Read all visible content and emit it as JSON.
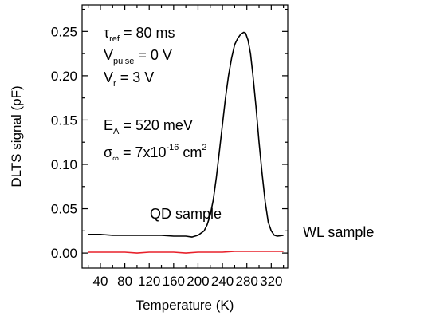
{
  "chart_data": {
    "type": "line",
    "xlabel": "Temperature (K)",
    "ylabel": "DLTS signal (pF)",
    "xlim": [
      10,
      347
    ],
    "ylim": [
      -0.017,
      0.28
    ],
    "xticks": [
      40,
      80,
      120,
      160,
      200,
      240,
      280,
      320
    ],
    "yticks": [
      0.0,
      0.05,
      0.1,
      0.15,
      0.2,
      0.25
    ],
    "xtick_labels": [
      "40",
      "80",
      "120",
      "160",
      "200",
      "240",
      "280",
      "320"
    ],
    "ytick_labels": [
      "0.00",
      "0.05",
      "0.10",
      "0.15",
      "0.20",
      "0.25"
    ],
    "grid": false,
    "legend": "none",
    "annotations": {
      "tau_ref": {
        "symbol": "τ",
        "sub": "ref",
        "text": " = 80 ms"
      },
      "v_pulse": {
        "symbol": "V",
        "sub": "pulse",
        "text": " = 0 V"
      },
      "v_r": {
        "symbol": "V",
        "sub": "r",
        "text": " = 3 V"
      },
      "e_a": {
        "symbol": "E",
        "sub": "A",
        "text": " = 520 meV"
      },
      "sigma": {
        "symbol": "σ",
        "sub": "∞",
        "text": " = 7x10",
        "sup": "-16",
        "text2": " cm",
        "sup2": "2"
      }
    },
    "series": [
      {
        "name": "QD sample",
        "color": "#000000",
        "x": [
          20,
          40,
          60,
          80,
          100,
          120,
          140,
          160,
          180,
          190,
          200,
          210,
          215,
          220,
          225,
          230,
          235,
          240,
          245,
          250,
          255,
          260,
          265,
          270,
          275,
          278,
          282,
          286,
          290,
          295,
          300,
          305,
          310,
          315,
          320,
          325,
          330,
          340
        ],
        "y": [
          0.021,
          0.021,
          0.02,
          0.02,
          0.02,
          0.02,
          0.02,
          0.019,
          0.019,
          0.018,
          0.02,
          0.025,
          0.032,
          0.043,
          0.06,
          0.085,
          0.115,
          0.145,
          0.175,
          0.2,
          0.22,
          0.235,
          0.242,
          0.247,
          0.249,
          0.248,
          0.24,
          0.225,
          0.2,
          0.165,
          0.125,
          0.09,
          0.058,
          0.035,
          0.025,
          0.02,
          0.019,
          0.02
        ]
      },
      {
        "name": "WL sample",
        "color": "#e8202a",
        "x": [
          20,
          40,
          60,
          80,
          100,
          120,
          140,
          160,
          180,
          200,
          220,
          240,
          260,
          280,
          300,
          320,
          340
        ],
        "y": [
          0.001,
          0.001,
          0.001,
          0.001,
          0.0,
          0.001,
          0.001,
          0.001,
          0.0,
          0.001,
          0.001,
          0.001,
          0.002,
          0.002,
          0.002,
          0.002,
          0.002
        ]
      }
    ]
  }
}
